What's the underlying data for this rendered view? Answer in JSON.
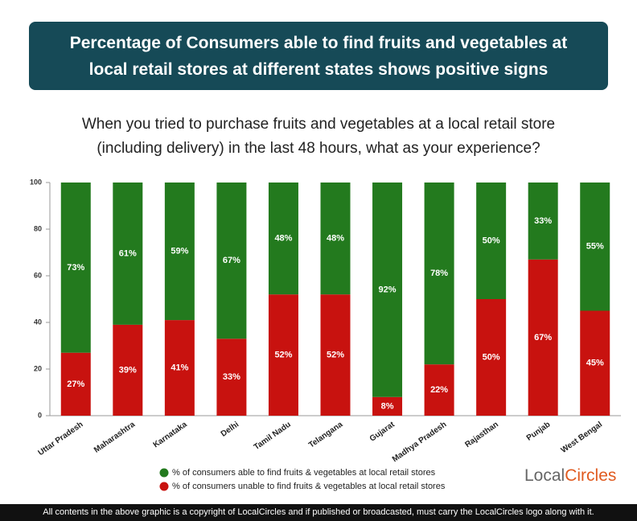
{
  "chart_data": {
    "type": "stacked_bar",
    "title": [
      "Percentage of Consumers able to find fruits and vegetables at",
      "local retail stores at different states shows positive signs"
    ],
    "subtitle": [
      "When you tried to purchase fruits and vegetables at a local retail store",
      "(including delivery) in the last 48 hours, what as your experience?"
    ],
    "categories": [
      "Uttar Pradesh",
      "Maharashtra",
      "Karnataka",
      "Delhi",
      "Tamil Nadu",
      "Telangana",
      "Gujarat",
      "Madhya Pradesh",
      "Rajasthan",
      "Punjab",
      "West Bengal"
    ],
    "series": [
      {
        "name": "% of consumers unable to find fruits & vegetables at local retail stores",
        "color": "#c8120f",
        "values": [
          27,
          39,
          41,
          33,
          52,
          52,
          8,
          22,
          50,
          67,
          45
        ],
        "value_labels": [
          "27%",
          "39%",
          "41%",
          "33%",
          "52%",
          "52%",
          "8%",
          "22%",
          "50%",
          "67%",
          "45%"
        ]
      },
      {
        "name": "% of consumers able to find fruits & vegetables at local retail stores",
        "color": "#237a1e",
        "values": [
          73,
          61,
          59,
          67,
          48,
          48,
          92,
          78,
          50,
          33,
          55
        ],
        "value_labels": [
          "73%",
          "61%",
          "59%",
          "67%",
          "48%",
          "48%",
          "92%",
          "78%",
          "50%",
          "33%",
          "55%"
        ]
      }
    ],
    "ylim": [
      0,
      100
    ],
    "yticks": [
      0,
      20,
      40,
      60,
      80,
      100
    ],
    "grid": false,
    "logo": [
      "Local",
      "Circles"
    ],
    "footer": "All contents in the above graphic is a copyright of LocalCircles and if published or broadcasted, must carry the LocalCircles logo along with it."
  }
}
